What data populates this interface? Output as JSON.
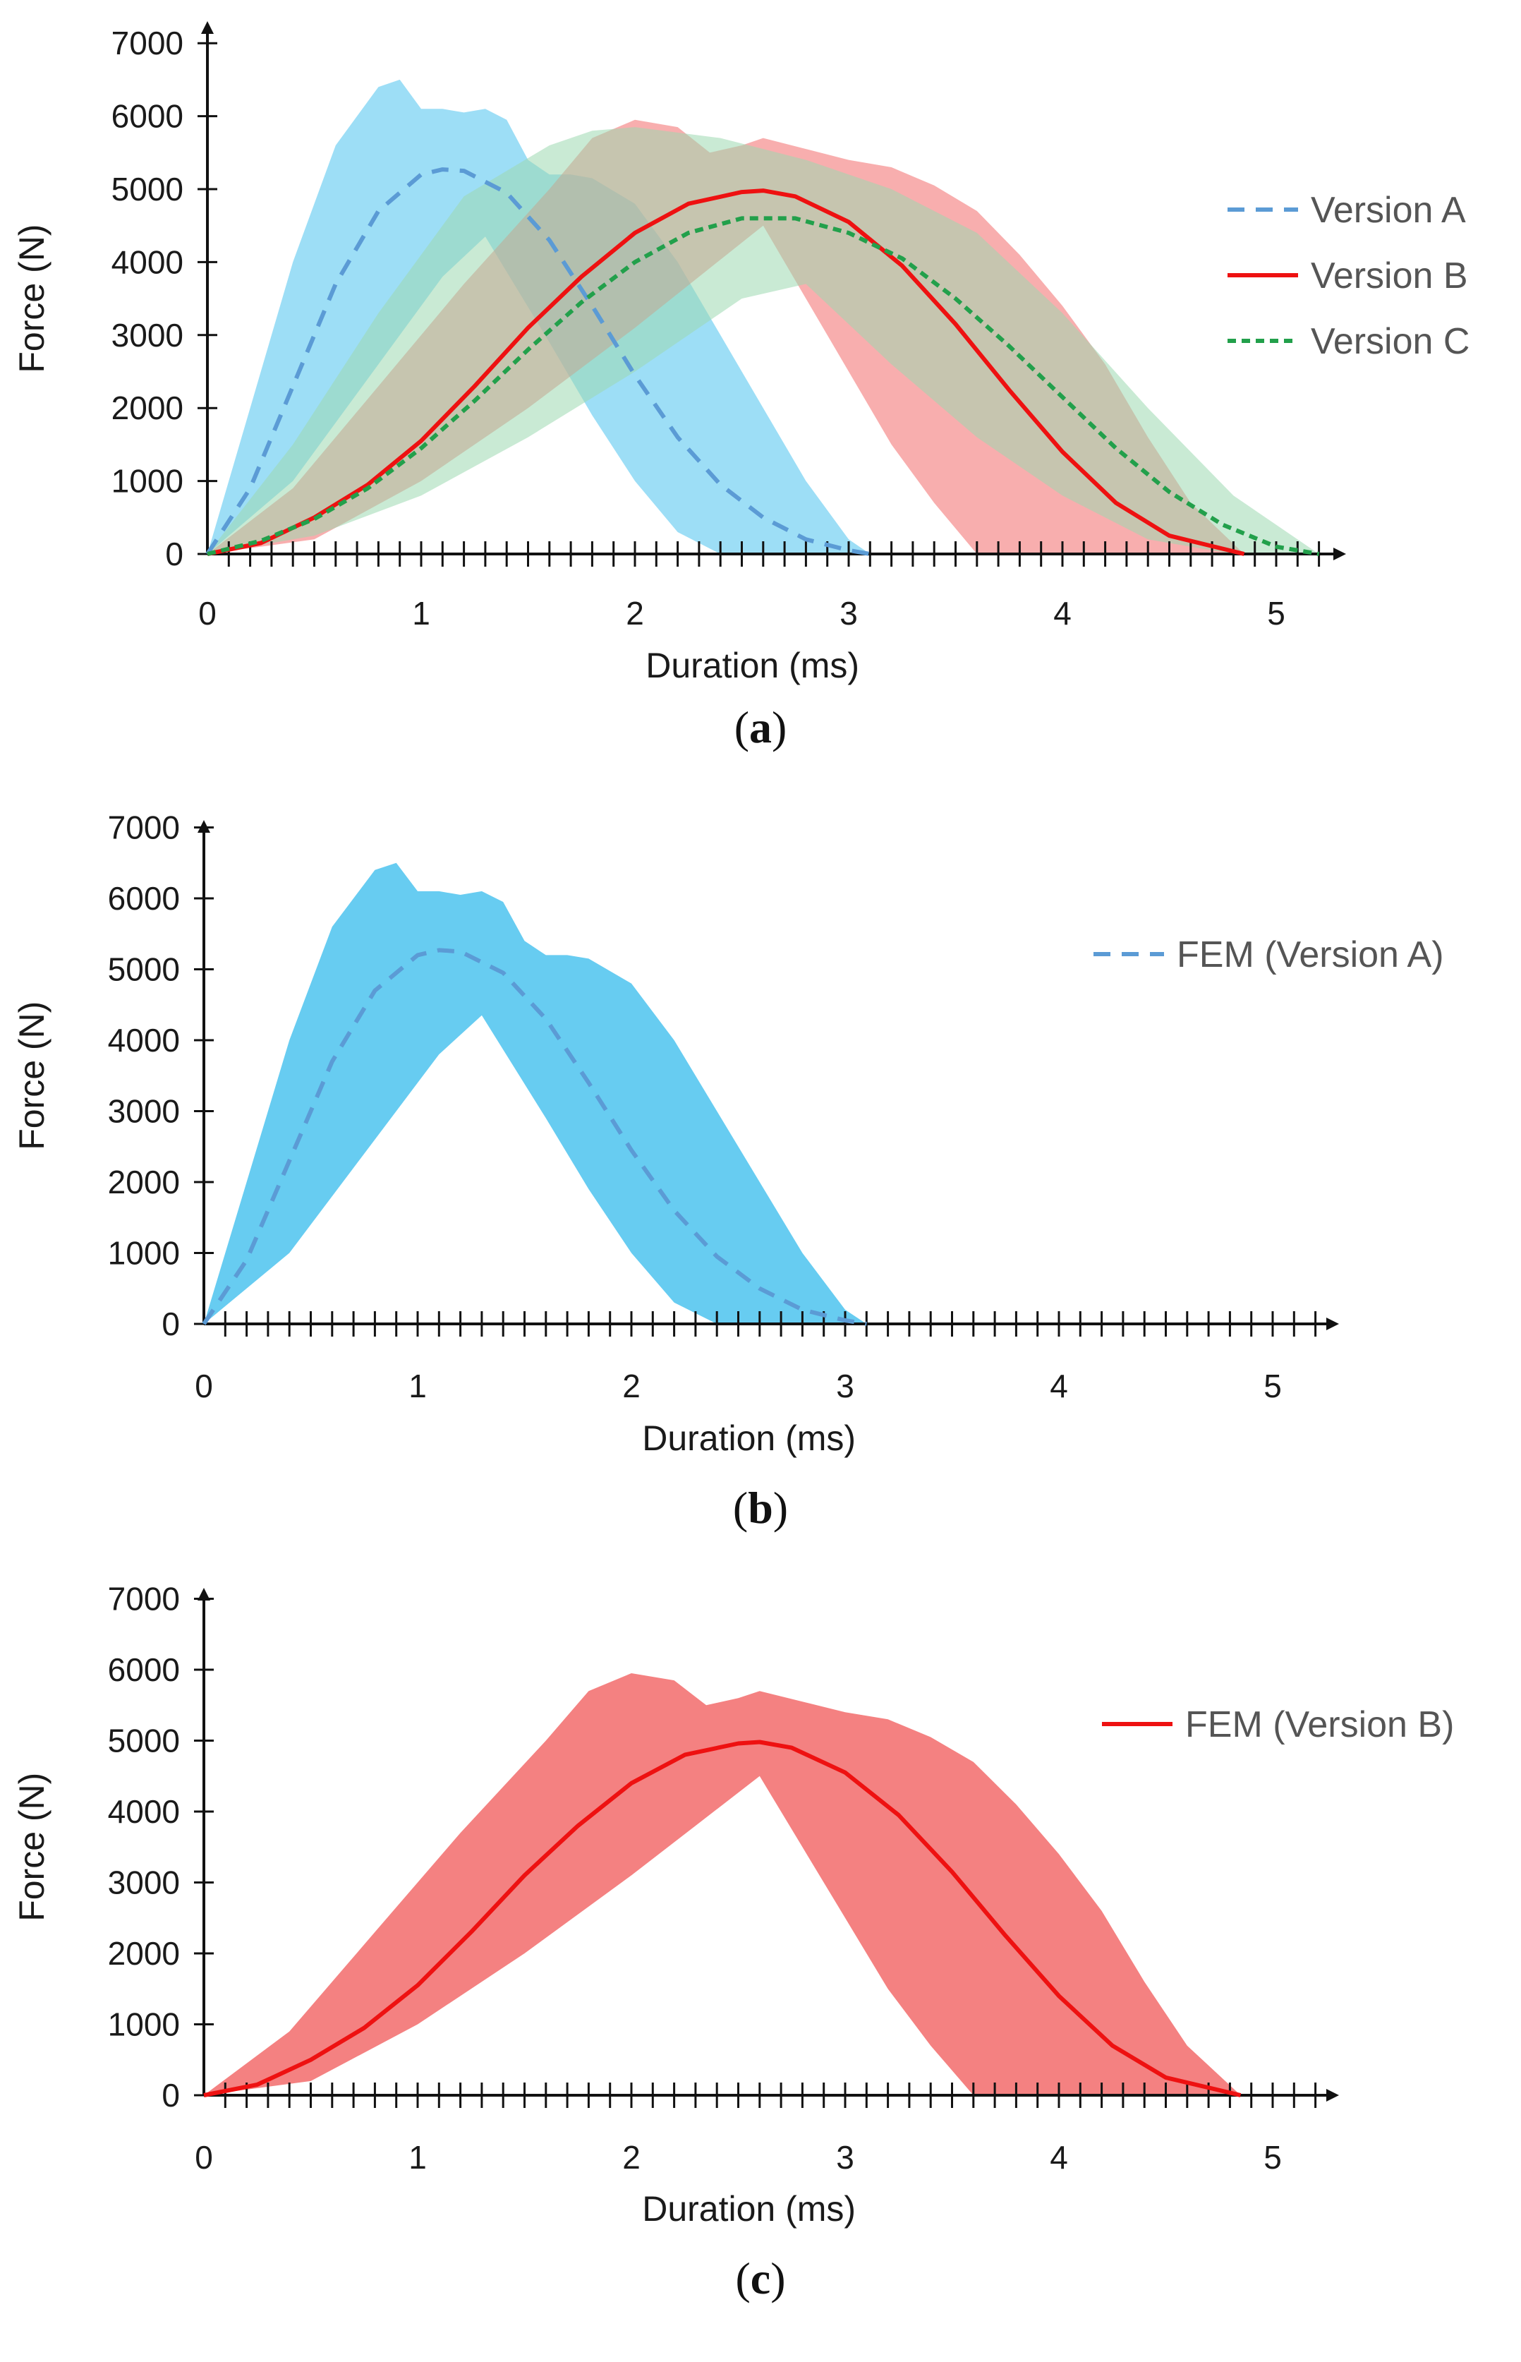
{
  "chart_data": [
    {
      "type": "area",
      "panel": "(a)",
      "panel_letter": "a",
      "xlabel": "Duration (ms)",
      "ylabel": "Force (N)",
      "xlim": [
        0,
        5.2
      ],
      "ylim": [
        0,
        7000
      ],
      "xticks": [
        0,
        1,
        2,
        3,
        4,
        5
      ],
      "yticks": [
        0,
        1000,
        2000,
        3000,
        4000,
        5000,
        6000,
        7000
      ],
      "minor_x_step": 0.1,
      "legend_position": "right",
      "series": [
        {
          "name": "Version A",
          "color": "#5b9bd5",
          "band_color": "#4cc3ee",
          "style": "dashed",
          "x": [
            0,
            0.2,
            0.4,
            0.6,
            0.8,
            1.0,
            1.1,
            1.2,
            1.4,
            1.6,
            1.8,
            2.0,
            2.2,
            2.4,
            2.6,
            2.8,
            3.0,
            3.1
          ],
          "values": [
            0,
            900,
            2300,
            3700,
            4700,
            5200,
            5270,
            5250,
            4950,
            4300,
            3400,
            2450,
            1600,
            950,
            500,
            200,
            50,
            0
          ],
          "band_x": [
            0,
            0.2,
            0.4,
            0.6,
            0.8,
            0.9,
            1.0,
            1.1,
            1.2,
            1.3,
            1.4,
            1.5,
            1.6,
            1.7,
            1.8,
            2.0,
            2.2,
            2.4,
            2.6,
            2.8,
            3.0,
            3.1
          ],
          "band_upper": [
            0,
            2000,
            4000,
            5600,
            6400,
            6500,
            6100,
            6100,
            6050,
            6100,
            5950,
            5400,
            5200,
            5200,
            5150,
            4800,
            4000,
            3000,
            2000,
            1000,
            200,
            0
          ],
          "band_lower_x": [
            0,
            0.4,
            0.8,
            1.1,
            1.3,
            1.6,
            1.8,
            2.0,
            2.2,
            2.4,
            2.6,
            2.8,
            3.1
          ],
          "band_lower": [
            0,
            1000,
            2600,
            3800,
            4350,
            2900,
            1900,
            1000,
            300,
            0,
            0,
            0,
            0
          ]
        },
        {
          "name": "Version B",
          "color": "#ee1111",
          "band_color": "#f26b6b",
          "style": "solid",
          "x": [
            0,
            0.25,
            0.5,
            0.75,
            1.0,
            1.25,
            1.5,
            1.75,
            2.0,
            2.25,
            2.5,
            2.6,
            2.75,
            3.0,
            3.25,
            3.5,
            3.75,
            4.0,
            4.25,
            4.5,
            4.85
          ],
          "values": [
            0,
            150,
            500,
            950,
            1550,
            2300,
            3100,
            3800,
            4400,
            4800,
            4960,
            4980,
            4900,
            4550,
            3950,
            3150,
            2250,
            1400,
            700,
            250,
            0
          ],
          "band_x": [
            0,
            0.4,
            0.8,
            1.2,
            1.6,
            1.8,
            2.0,
            2.2,
            2.35,
            2.5,
            2.6,
            2.8,
            3.0,
            3.2,
            3.4,
            3.6,
            3.8,
            4.0,
            4.2,
            4.4,
            4.6,
            4.85
          ],
          "band_upper": [
            0,
            900,
            2300,
            3700,
            5000,
            5700,
            5950,
            5850,
            5500,
            5600,
            5700,
            5550,
            5400,
            5300,
            5050,
            4700,
            4100,
            3400,
            2600,
            1600,
            700,
            0
          ],
          "band_lower_x": [
            0,
            0.5,
            1.0,
            1.5,
            2.0,
            2.3,
            2.6,
            2.8,
            3.0,
            3.2,
            3.4,
            3.6,
            3.8,
            4.85
          ],
          "band_lower": [
            0,
            200,
            1000,
            2000,
            3100,
            3800,
            4500,
            3500,
            2500,
            1500,
            700,
            0,
            0,
            0
          ]
        },
        {
          "name": "Version C",
          "color": "#22a04b",
          "band_color": "#9dd9b0",
          "style": "dotted",
          "x": [
            0,
            0.25,
            0.5,
            0.75,
            1.0,
            1.25,
            1.5,
            1.75,
            2.0,
            2.25,
            2.5,
            2.75,
            3.0,
            3.25,
            3.5,
            3.75,
            4.0,
            4.25,
            4.5,
            4.75,
            5.0,
            5.2
          ],
          "values": [
            0,
            180,
            480,
            900,
            1450,
            2100,
            2800,
            3450,
            4000,
            4400,
            4600,
            4600,
            4400,
            4050,
            3500,
            2850,
            2150,
            1450,
            850,
            400,
            100,
            0
          ],
          "band_x": [
            0,
            0.4,
            0.8,
            1.2,
            1.6,
            1.8,
            2.0,
            2.4,
            2.8,
            3.2,
            3.6,
            4.0,
            4.4,
            4.8,
            5.2
          ],
          "band_upper": [
            0,
            1500,
            3300,
            4900,
            5600,
            5800,
            5850,
            5700,
            5400,
            5000,
            4400,
            3300,
            2000,
            800,
            0
          ],
          "band_lower_x": [
            0,
            0.5,
            1.0,
            1.5,
            2.0,
            2.5,
            2.8,
            3.2,
            3.6,
            4.0,
            4.4,
            4.8,
            5.2
          ],
          "band_lower": [
            0,
            250,
            800,
            1600,
            2500,
            3500,
            3700,
            2600,
            1600,
            800,
            200,
            0,
            0
          ]
        }
      ]
    },
    {
      "type": "area",
      "panel": "(b)",
      "panel_letter": "b",
      "xlabel": "Duration (ms)",
      "ylabel": "Force (N)",
      "xlim": [
        0,
        5.2
      ],
      "ylim": [
        0,
        7000
      ],
      "xticks": [
        0,
        1,
        2,
        3,
        4,
        5
      ],
      "yticks": [
        0,
        1000,
        2000,
        3000,
        4000,
        5000,
        6000,
        7000
      ],
      "minor_x_step": 0.1,
      "legend_position": "top-right",
      "series": [
        {
          "name": "FEM (Version A)",
          "color": "#5b9bd5",
          "band_color": "#4cc3ee",
          "style": "dashed",
          "x": [
            0,
            0.2,
            0.4,
            0.6,
            0.8,
            1.0,
            1.1,
            1.2,
            1.4,
            1.6,
            1.8,
            2.0,
            2.2,
            2.4,
            2.6,
            2.8,
            3.0,
            3.1
          ],
          "values": [
            0,
            900,
            2300,
            3700,
            4700,
            5200,
            5270,
            5250,
            4950,
            4300,
            3400,
            2450,
            1600,
            950,
            500,
            200,
            50,
            0
          ],
          "band_x": [
            0,
            0.2,
            0.4,
            0.6,
            0.8,
            0.9,
            1.0,
            1.1,
            1.2,
            1.3,
            1.4,
            1.5,
            1.6,
            1.7,
            1.8,
            2.0,
            2.2,
            2.4,
            2.6,
            2.8,
            3.0,
            3.1
          ],
          "band_upper": [
            0,
            2000,
            4000,
            5600,
            6400,
            6500,
            6100,
            6100,
            6050,
            6100,
            5950,
            5400,
            5200,
            5200,
            5150,
            4800,
            4000,
            3000,
            2000,
            1000,
            200,
            0
          ],
          "band_lower_x": [
            0,
            0.4,
            0.8,
            1.1,
            1.3,
            1.6,
            1.8,
            2.0,
            2.2,
            2.4,
            2.6,
            2.8,
            3.1
          ],
          "band_lower": [
            0,
            1000,
            2600,
            3800,
            4350,
            2900,
            1900,
            1000,
            300,
            0,
            0,
            0,
            0
          ]
        }
      ]
    },
    {
      "type": "area",
      "panel": "(c)",
      "panel_letter": "c",
      "xlabel": "Duration (ms)",
      "ylabel": "Force (N)",
      "xlim": [
        0,
        5.2
      ],
      "ylim": [
        0,
        7000
      ],
      "xticks": [
        0,
        1,
        2,
        3,
        4,
        5
      ],
      "yticks": [
        0,
        1000,
        2000,
        3000,
        4000,
        5000,
        6000,
        7000
      ],
      "minor_x_step": 0.1,
      "legend_position": "top-right",
      "series": [
        {
          "name": "FEM (Version B)",
          "color": "#ee1111",
          "band_color": "#f26b6b",
          "style": "solid",
          "x": [
            0,
            0.25,
            0.5,
            0.75,
            1.0,
            1.25,
            1.5,
            1.75,
            2.0,
            2.25,
            2.5,
            2.6,
            2.75,
            3.0,
            3.25,
            3.5,
            3.75,
            4.0,
            4.25,
            4.5,
            4.85
          ],
          "values": [
            0,
            150,
            500,
            950,
            1550,
            2300,
            3100,
            3800,
            4400,
            4800,
            4960,
            4980,
            4900,
            4550,
            3950,
            3150,
            2250,
            1400,
            700,
            250,
            0
          ],
          "band_x": [
            0,
            0.4,
            0.8,
            1.2,
            1.6,
            1.8,
            2.0,
            2.2,
            2.35,
            2.5,
            2.6,
            2.8,
            3.0,
            3.2,
            3.4,
            3.6,
            3.8,
            4.0,
            4.2,
            4.4,
            4.6,
            4.85
          ],
          "band_upper": [
            0,
            900,
            2300,
            3700,
            5000,
            5700,
            5950,
            5850,
            5500,
            5600,
            5700,
            5550,
            5400,
            5300,
            5050,
            4700,
            4100,
            3400,
            2600,
            1600,
            700,
            0
          ],
          "band_lower_x": [
            0,
            0.5,
            1.0,
            1.5,
            2.0,
            2.3,
            2.6,
            2.8,
            3.0,
            3.2,
            3.4,
            3.6,
            3.8,
            4.85
          ],
          "band_lower": [
            0,
            200,
            1000,
            2000,
            3100,
            3800,
            4500,
            3500,
            2500,
            1500,
            700,
            0,
            0,
            0
          ]
        }
      ]
    }
  ]
}
